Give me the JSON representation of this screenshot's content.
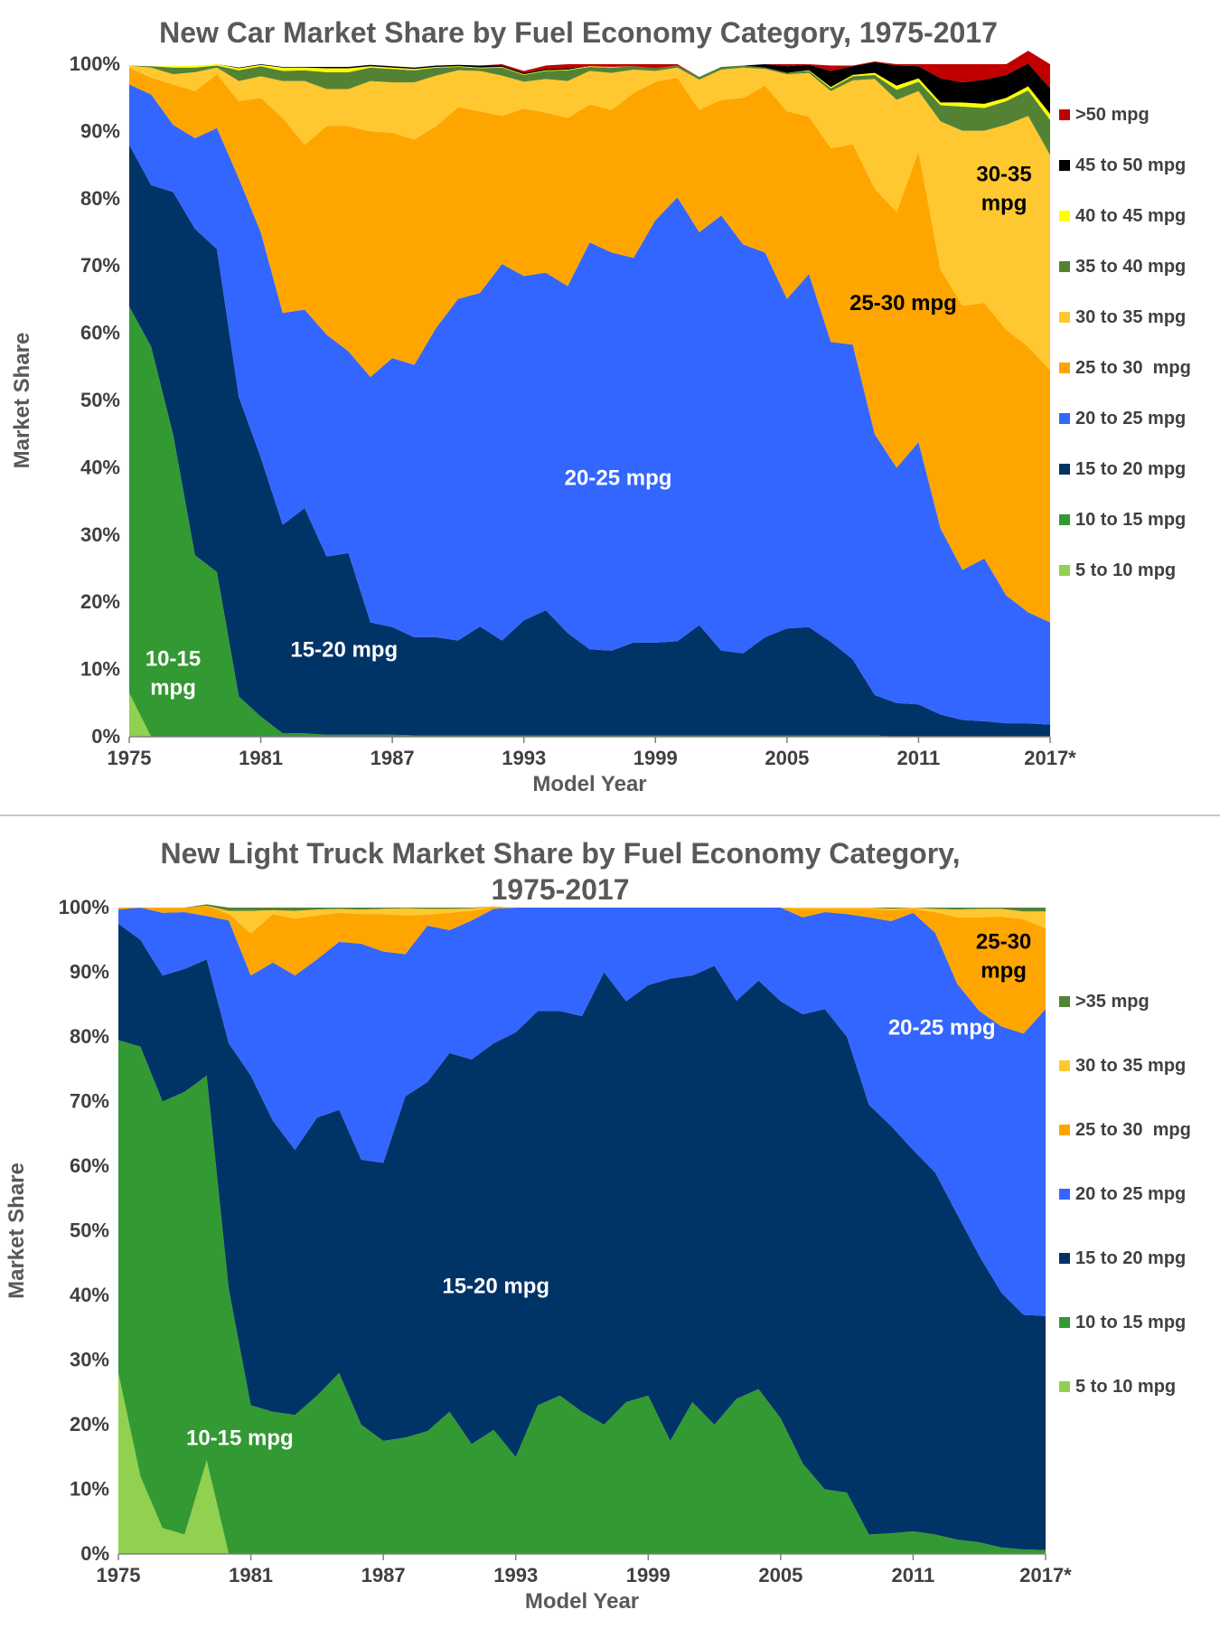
{
  "colors": {
    "gt50": "#C00000",
    "45to50": "#000000",
    "40to45": "#FFFF00",
    "35to40": "#548235",
    "30to35": "#FFC830",
    "25to30": "#FFA500",
    "20to25": "#3366FF",
    "15to20": "#003366",
    "10to15": "#339933",
    "5to10": "#92D050",
    "gt35": "#548235"
  },
  "chart_data": [
    {
      "type": "area",
      "stacked": true,
      "title": "New Car Market Share by Fuel Economy Category, 1975-2017",
      "xlabel": "Model Year",
      "ylabel": "Market Share",
      "ylim": [
        0,
        100
      ],
      "x_ticks": [
        "1975",
        "1981",
        "1987",
        "1993",
        "1999",
        "2005",
        "2011",
        "2017*"
      ],
      "y_ticks": [
        "0%",
        "10%",
        "20%",
        "30%",
        "40%",
        "50%",
        "60%",
        "70%",
        "80%",
        "90%",
        "100%"
      ],
      "legend_position": "right",
      "x": [
        1975,
        1976,
        1977,
        1978,
        1979,
        1980,
        1981,
        1982,
        1983,
        1984,
        1985,
        1986,
        1987,
        1988,
        1989,
        1990,
        1991,
        1992,
        1993,
        1994,
        1995,
        1996,
        1997,
        1998,
        1999,
        2000,
        2001,
        2002,
        2003,
        2004,
        2005,
        2006,
        2007,
        2008,
        2009,
        2010,
        2011,
        2012,
        2013,
        2014,
        2015,
        2016,
        2017
      ],
      "series": [
        {
          "name": "5 to 10 mpg",
          "key": "5to10",
          "values": [
            6.5,
            0,
            0,
            0,
            0,
            0,
            0,
            0,
            0,
            0,
            0,
            0,
            0,
            0,
            0,
            0,
            0,
            0,
            0,
            0,
            0,
            0,
            0,
            0,
            0,
            0,
            0,
            0,
            0,
            0,
            0,
            0,
            0,
            0,
            0,
            0,
            0,
            0,
            0,
            0,
            0,
            0,
            0
          ]
        },
        {
          "name": "10 to 15 mpg",
          "key": "10to15",
          "values": [
            57.5,
            58,
            45,
            27,
            24.5,
            6,
            3,
            0.5,
            0.5,
            0.3,
            0.3,
            0.3,
            0.3,
            0.2,
            0.2,
            0.2,
            0.2,
            0.2,
            0.2,
            0.2,
            0.2,
            0.2,
            0.2,
            0.2,
            0.2,
            0.2,
            0.2,
            0.2,
            0.2,
            0.2,
            0.2,
            0.2,
            0.2,
            0.2,
            0.2,
            0,
            0,
            0,
            0,
            0,
            0,
            0,
            0
          ]
        },
        {
          "name": "15 to 20 mpg",
          "key": "15to20",
          "values": [
            24,
            24,
            36,
            48.5,
            48,
            44.5,
            38.5,
            31,
            33.5,
            26.5,
            27,
            16.7,
            16,
            14.6,
            14.6,
            14.1,
            16.2,
            14.1,
            17.1,
            18.6,
            15.2,
            12.8,
            12.6,
            13.8,
            13.8,
            14,
            16.4,
            12.6,
            12.2,
            14.6,
            15.9,
            16.1,
            13.9,
            11.3,
            6,
            5,
            4.8,
            3.3,
            2.5,
            2.3,
            2,
            2,
            1.8
          ]
        },
        {
          "name": "20 to 25 mpg",
          "key": "20to25",
          "values": [
            9,
            13.5,
            10,
            13.5,
            18,
            32.5,
            33.5,
            31.5,
            29.5,
            33,
            30,
            36.5,
            40,
            40.5,
            46,
            50.8,
            49.6,
            56,
            51.2,
            50.2,
            51.6,
            60.5,
            59.2,
            57.2,
            62.8,
            66,
            58.4,
            64.7,
            60.8,
            57.2,
            49,
            52.5,
            44.6,
            46.8,
            38.8,
            35,
            39,
            27.7,
            22.3,
            24.2,
            19,
            16.5,
            15.2
          ]
        },
        {
          "name": "25 to 30  mpg",
          "key": "25to30",
          "values": [
            2.5,
            2.5,
            6,
            7,
            8,
            11.5,
            20,
            29,
            24.5,
            31,
            33.5,
            36.5,
            33.5,
            33.5,
            30,
            28.5,
            27,
            22,
            24.9,
            23.8,
            25,
            20.5,
            21.2,
            24.5,
            20.6,
            17.8,
            18.2,
            17.2,
            21.8,
            24.8,
            27.9,
            23.4,
            28.8,
            29.8,
            36.5,
            38,
            43.2,
            38.5,
            39.3,
            38,
            39.5,
            39.5,
            37.5
          ]
        },
        {
          "name": "30 to 35 mpg",
          "key": "30to35",
          "values": [
            0.3,
            1.5,
            1.5,
            2.8,
            1,
            3,
            3.2,
            5.5,
            9.5,
            5.5,
            5.5,
            7.5,
            7.5,
            8.5,
            7.5,
            5.5,
            6,
            6,
            4,
            5,
            5.5,
            5,
            5.5,
            3.5,
            1.6,
            1.5,
            4.5,
            4.5,
            4.5,
            2.5,
            5.5,
            6.5,
            8.5,
            9.5,
            16.3,
            16.7,
            9,
            22,
            26,
            25.6,
            30.5,
            34.3,
            32
          ]
        },
        {
          "name": "35 to 40 mpg",
          "key": "35to40",
          "values": [
            0,
            0.2,
            1,
            0.7,
            0.3,
            1.6,
            1.5,
            1.5,
            1.6,
            2.5,
            2.5,
            2,
            2,
            1.8,
            1.2,
            0.5,
            0.4,
            1.2,
            1,
            1.2,
            1.6,
            0.6,
            0.8,
            0.5,
            0.4,
            0.3,
            0.4,
            0.4,
            0.3,
            0.2,
            0.2,
            0.3,
            0.4,
            0.6,
            0.6,
            1.5,
            1.4,
            2.4,
            3.6,
            3.4,
            3.5,
            3.8,
            5.2
          ]
        },
        {
          "name": "40 to 45 mpg",
          "key": "40to45",
          "values": [
            0,
            0,
            0.2,
            0.3,
            0.2,
            0.3,
            0.2,
            0.5,
            0.4,
            0.6,
            0.6,
            0.2,
            0.2,
            0.2,
            0.1,
            0.1,
            0.1,
            0.1,
            0.1,
            0.1,
            0.1,
            0.1,
            0.1,
            0,
            0,
            0,
            0,
            0,
            0,
            0,
            0,
            0.1,
            0.2,
            0.2,
            0.3,
            0.6,
            0.5,
            0.4,
            0.6,
            0.6,
            0.5,
            0.6,
            0.9
          ]
        },
        {
          "name": "45 to 50 mpg",
          "key": "45to50",
          "values": [
            0,
            0,
            0,
            0,
            0,
            0.1,
            0.1,
            0.1,
            0.1,
            0.2,
            0.2,
            0.2,
            0.2,
            0.2,
            0.2,
            0.2,
            0.3,
            0.2,
            0.2,
            0.2,
            0.2,
            0,
            0,
            0,
            0,
            0,
            0,
            0,
            0,
            0.5,
            1,
            0.8,
            2.4,
            1.3,
            1.6,
            3,
            1.8,
            3.6,
            3,
            3.6,
            3.4,
            3.4,
            3.8
          ]
        },
        {
          "name": ">50 mpg",
          "key": "gt50",
          "values": [
            0,
            0,
            0,
            0,
            0,
            0,
            0,
            0,
            0,
            0,
            0,
            0,
            0,
            0,
            0,
            0,
            0,
            0.2,
            0.3,
            0.5,
            0.6,
            0.3,
            0.4,
            0.3,
            0.6,
            0.2,
            0,
            0,
            0,
            0,
            0.3,
            0.1,
            0.8,
            0.1,
            0.1,
            0.2,
            0.3,
            2.1,
            2.7,
            2.3,
            1.6,
            1.9,
            3.6
          ]
        }
      ],
      "annotations": [
        {
          "text": "10-15\nmpg",
          "color": "white",
          "x": 1977,
          "y": 9.5
        },
        {
          "text": "15-20 mpg",
          "color": "white",
          "x": 1984.8,
          "y": 13
        },
        {
          "text": "20-25 mpg",
          "color": "white",
          "x": 1997.3,
          "y": 38.5
        },
        {
          "text": "25-30 mpg",
          "color": "black",
          "x": 2010.3,
          "y": 64.5
        },
        {
          "text": "30-35\nmpg",
          "color": "black",
          "x": 2014.9,
          "y": 81.5
        }
      ]
    },
    {
      "type": "area",
      "stacked": true,
      "title": "New Light Truck Market Share by Fuel Economy Category,\n1975-2017",
      "xlabel": "Model Year",
      "ylabel": "Market Share",
      "ylim": [
        0,
        100
      ],
      "x_ticks": [
        "1975",
        "1981",
        "1987",
        "1993",
        "1999",
        "2005",
        "2011",
        "2017*"
      ],
      "y_ticks": [
        "0%",
        "10%",
        "20%",
        "30%",
        "40%",
        "50%",
        "60%",
        "70%",
        "80%",
        "90%",
        "100%"
      ],
      "legend_position": "right",
      "x": [
        1975,
        1976,
        1977,
        1978,
        1979,
        1980,
        1981,
        1982,
        1983,
        1984,
        1985,
        1986,
        1987,
        1988,
        1989,
        1990,
        1991,
        1992,
        1993,
        1994,
        1995,
        1996,
        1997,
        1998,
        1999,
        2000,
        2001,
        2002,
        2003,
        2004,
        2005,
        2006,
        2007,
        2008,
        2009,
        2010,
        2011,
        2012,
        2013,
        2014,
        2015,
        2016,
        2017
      ],
      "series": [
        {
          "name": "5 to 10 mpg",
          "key": "5to10",
          "values": [
            28,
            12,
            4,
            3,
            14.5,
            0,
            0,
            0,
            0,
            0,
            0,
            0,
            0,
            0,
            0,
            0,
            0,
            0,
            0,
            0,
            0,
            0,
            0,
            0,
            0,
            0,
            0,
            0,
            0,
            0,
            0,
            0,
            0,
            0,
            0,
            0,
            0,
            0,
            0,
            0,
            0,
            0,
            0
          ]
        },
        {
          "name": "10 to 15 mpg",
          "key": "10to15",
          "values": [
            51.5,
            66.5,
            66,
            68.5,
            59.5,
            41,
            23,
            22,
            21.5,
            24.5,
            28,
            20,
            17.5,
            18,
            19,
            22,
            17,
            19.2,
            15,
            23,
            24.5,
            22,
            20,
            23.5,
            24.5,
            17.5,
            23.5,
            20,
            24,
            25.5,
            21,
            14,
            10,
            9.5,
            3,
            3.2,
            3.5,
            3,
            2.2,
            1.8,
            1,
            0.7,
            0.6
          ]
        },
        {
          "name": "15 to 20 mpg",
          "key": "15to20",
          "values": [
            18,
            16.5,
            19.5,
            19,
            18,
            38,
            51,
            45,
            41,
            43,
            40.7,
            41,
            43,
            52.8,
            54,
            55.5,
            59.5,
            59.8,
            65.7,
            61,
            59.5,
            61.2,
            70,
            62,
            63.5,
            71.5,
            66,
            71,
            61.6,
            63.2,
            64.5,
            69.5,
            74.3,
            70.5,
            66.5,
            63,
            59,
            56,
            50.3,
            44.3,
            39.4,
            36.3,
            36.2
          ]
        },
        {
          "name": "20 to 25 mpg",
          "key": "20to25",
          "values": [
            2.2,
            5,
            9.7,
            8.8,
            6.7,
            19,
            15.5,
            24.5,
            27,
            24.5,
            26,
            33.4,
            32.7,
            22,
            24.2,
            19,
            21.5,
            20.8,
            19.3,
            16,
            16,
            16.8,
            10,
            14.5,
            12,
            11,
            10.5,
            9,
            14.4,
            11.3,
            14.5,
            15,
            15,
            19,
            29,
            31.7,
            36.7,
            37.1,
            35.7,
            37.9,
            41.2,
            43.5,
            47.5
          ]
        },
        {
          "name": "25 to 30  mpg",
          "key": "25to30",
          "values": [
            0.3,
            0,
            0.8,
            0.7,
            1.6,
            1,
            6.5,
            7.5,
            8.8,
            6.8,
            4.5,
            4.6,
            5.8,
            6,
            1.7,
            2.7,
            1.5,
            0.3,
            0,
            0,
            0,
            0,
            0,
            0,
            0,
            0,
            0,
            0,
            0,
            0,
            0,
            1.3,
            0.5,
            0.8,
            1.3,
            1.7,
            0.6,
            3.2,
            10.3,
            14.5,
            17,
            17.7,
            12.5
          ]
        },
        {
          "name": "30 to 35 mpg",
          "key": "30to35",
          "values": [
            0,
            0,
            0,
            0,
            0,
            0.5,
            3.5,
            0.6,
            1.2,
            0.9,
            0.6,
            0.7,
            0.8,
            1.1,
            0.9,
            0.6,
            0.4,
            0.1,
            0,
            0,
            0,
            0,
            0,
            0,
            0,
            0,
            0,
            0,
            0,
            0,
            0,
            0.2,
            0.2,
            0.2,
            0.2,
            0.2,
            0.2,
            0.5,
            1.2,
            1.3,
            1.2,
            1.2,
            2.6
          ]
        },
        {
          "name": ">35 mpg",
          "key": "gt35",
          "values": [
            0,
            0,
            0,
            0,
            0.2,
            0.5,
            0.5,
            0.4,
            0.5,
            0.3,
            0.2,
            0.3,
            0.2,
            0.1,
            0.2,
            0.2,
            0.1,
            0,
            0,
            0,
            0,
            0,
            0,
            0,
            0,
            0,
            0,
            0,
            0,
            0,
            0,
            0,
            0,
            0,
            0,
            0.2,
            0,
            0.2,
            0.3,
            0.2,
            0.2,
            0.6,
            0.6
          ]
        }
      ],
      "annotations": [
        {
          "text": "10-15 mpg",
          "color": "white",
          "x": 1980.5,
          "y": 18
        },
        {
          "text": "15-20 mpg",
          "color": "white",
          "x": 1992.1,
          "y": 41.5
        },
        {
          "text": "20-25 mpg",
          "color": "white",
          "x": 2012.3,
          "y": 81.5
        },
        {
          "text": "25-30\nmpg",
          "color": "black",
          "x": 2015.1,
          "y": 92.5
        }
      ]
    }
  ]
}
